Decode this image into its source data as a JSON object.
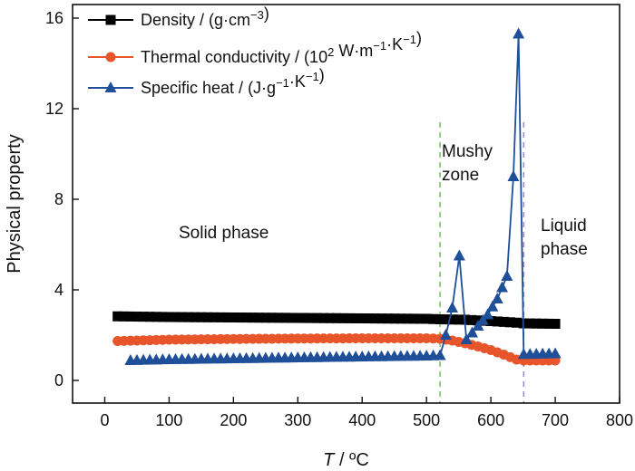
{
  "chart_data": {
    "type": "line",
    "xlabel": {
      "italic": "T",
      "rest": " / ºC"
    },
    "ylabel": "Physical property",
    "xlim": [
      -50,
      800
    ],
    "ylim": [
      -1,
      16.6
    ],
    "x_ticks": [
      0,
      100,
      200,
      300,
      400,
      500,
      600,
      700,
      800
    ],
    "y_ticks": [
      0,
      4,
      8,
      12,
      16
    ],
    "x_tick_labels": [
      "0",
      "100",
      "200",
      "300",
      "400",
      "500",
      "600",
      "700",
      "800"
    ],
    "y_tick_labels": [
      "0",
      "4",
      "8",
      "12",
      "16"
    ],
    "legend_position": "top-left",
    "legend": [
      {
        "parts": [
          [
            "Density / (g·cm",
            ""
          ],
          [
            "−3",
            "sup"
          ],
          [
            ")",
            ""
          ]
        ]
      },
      {
        "parts": [
          [
            "Thermal conductivity / (10",
            ""
          ],
          [
            "2",
            "sup"
          ],
          [
            " W·m",
            ""
          ],
          [
            "−1",
            "sup"
          ],
          [
            "·K",
            ""
          ],
          [
            "−1",
            "sup"
          ],
          [
            ")",
            ""
          ]
        ]
      },
      {
        "parts": [
          [
            "Specific heat / (J·g",
            ""
          ],
          [
            "−1",
            "sup"
          ],
          [
            "·K",
            ""
          ],
          [
            "−1",
            "sup"
          ],
          [
            ")",
            ""
          ]
        ]
      }
    ],
    "vlines": [
      {
        "x": 521,
        "color": "#7cc36a"
      },
      {
        "x": 651,
        "color": "#a48cc8"
      }
    ],
    "annotations": {
      "solid": "Solid phase",
      "mushy_1": "Mushy",
      "mushy_2": "zone",
      "liquid_1": "Liquid",
      "liquid_2": "phase"
    },
    "series": [
      {
        "name": "Density",
        "color": "#000000",
        "marker": "square",
        "x": [
          20,
          100,
          200,
          300,
          400,
          500,
          521,
          560,
          600,
          640,
          651,
          700
        ],
        "y": [
          2.83,
          2.8,
          2.78,
          2.76,
          2.74,
          2.72,
          2.7,
          2.68,
          2.62,
          2.55,
          2.52,
          2.5
        ]
      },
      {
        "name": "Thermal conductivity",
        "color": "#e8552a",
        "marker": "circle",
        "x": [
          20,
          100,
          200,
          300,
          400,
          500,
          521,
          540,
          560,
          580,
          600,
          620,
          640,
          651,
          700
        ],
        "y": [
          1.74,
          1.8,
          1.83,
          1.85,
          1.86,
          1.86,
          1.84,
          1.76,
          1.64,
          1.5,
          1.34,
          1.14,
          0.92,
          0.88,
          0.88
        ]
      },
      {
        "name": "Specific heat",
        "color": "#1f4f99",
        "marker": "triangle",
        "x": [
          40,
          100,
          200,
          300,
          400,
          500,
          521,
          530,
          540,
          551,
          562,
          580,
          595,
          610,
          625,
          635,
          643,
          651,
          700
        ],
        "y": [
          0.88,
          0.92,
          0.96,
          1.0,
          1.04,
          1.08,
          1.1,
          2.0,
          3.2,
          5.5,
          1.8,
          2.4,
          2.9,
          3.6,
          4.6,
          9.0,
          15.3,
          1.15,
          1.18
        ]
      }
    ]
  }
}
